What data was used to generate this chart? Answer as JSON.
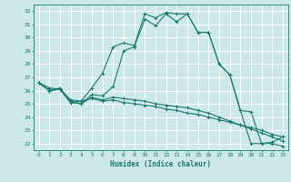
{
  "title": "",
  "xlabel": "Humidex (Indice chaleur)",
  "bg_color": "#cce8e8",
  "grid_color": "#ffffff",
  "line_color": "#1a7a6e",
  "xlim": [
    -0.5,
    23.5
  ],
  "ylim": [
    21.5,
    32.5
  ],
  "xticks": [
    0,
    1,
    2,
    3,
    4,
    5,
    6,
    7,
    8,
    9,
    10,
    11,
    12,
    13,
    14,
    15,
    16,
    17,
    18,
    19,
    20,
    21,
    22,
    23
  ],
  "yticks": [
    22,
    23,
    24,
    25,
    26,
    27,
    28,
    29,
    30,
    31,
    32
  ],
  "line1_x": [
    0,
    1,
    2,
    3,
    4,
    5,
    6,
    7,
    8,
    9,
    10,
    11,
    12,
    13,
    14,
    15,
    16,
    17,
    18,
    19,
    20,
    21,
    22,
    23
  ],
  "line1_y": [
    26.6,
    26.0,
    26.1,
    25.1,
    25.2,
    26.2,
    27.3,
    29.3,
    29.6,
    29.4,
    31.8,
    31.5,
    31.9,
    31.8,
    31.8,
    30.4,
    30.4,
    28.0,
    27.2,
    24.5,
    24.4,
    22.0,
    22.0,
    21.8
  ],
  "line2_x": [
    0,
    1,
    2,
    3,
    4,
    5,
    6,
    7,
    8,
    9,
    10,
    11,
    12,
    13,
    14,
    15,
    16,
    17,
    18,
    19,
    20,
    21,
    22,
    23
  ],
  "line2_y": [
    26.6,
    26.0,
    26.1,
    25.1,
    25.0,
    25.7,
    25.6,
    26.3,
    29.0,
    29.3,
    31.4,
    30.9,
    31.8,
    31.2,
    31.8,
    30.4,
    30.4,
    28.0,
    27.2,
    24.5,
    22.0,
    22.0,
    22.1,
    22.5
  ],
  "line3_x": [
    0,
    1,
    2,
    3,
    4,
    5,
    6,
    7,
    8,
    9,
    10,
    11,
    12,
    13,
    14,
    15,
    16,
    17,
    18,
    19,
    20,
    21,
    22,
    23
  ],
  "line3_y": [
    26.6,
    26.0,
    26.2,
    25.2,
    25.0,
    25.5,
    25.3,
    25.5,
    25.4,
    25.3,
    25.2,
    25.0,
    24.9,
    24.8,
    24.7,
    24.5,
    24.3,
    24.0,
    23.7,
    23.4,
    23.1,
    22.8,
    22.5,
    22.2
  ],
  "line4_x": [
    0,
    1,
    2,
    3,
    4,
    5,
    6,
    7,
    8,
    9,
    10,
    11,
    12,
    13,
    14,
    15,
    16,
    17,
    18,
    19,
    20,
    21,
    22,
    23
  ],
  "line4_y": [
    26.6,
    26.2,
    26.1,
    25.3,
    25.2,
    25.4,
    25.2,
    25.3,
    25.1,
    25.0,
    24.9,
    24.8,
    24.6,
    24.5,
    24.3,
    24.2,
    24.0,
    23.8,
    23.6,
    23.4,
    23.2,
    23.0,
    22.7,
    22.5
  ]
}
